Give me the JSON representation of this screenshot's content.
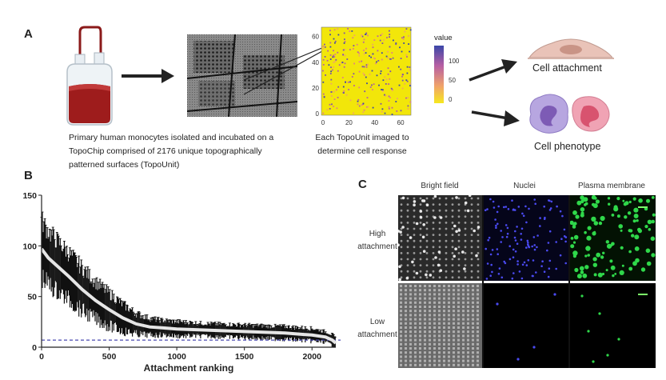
{
  "panelA": {
    "letter": "A",
    "caption_left": [
      "Primary human monocytes isolated and incubated on a",
      "TopoChip comprised of 2176 unique topographically",
      "patterned surfaces (TopoUnit)"
    ],
    "caption_mid": [
      "Each TopoUnit imaged to",
      "determine cell response"
    ],
    "heatmap": {
      "xticks": [
        "0",
        "20",
        "40",
        "60"
      ],
      "yticks": [
        "60",
        "40",
        "20",
        "0"
      ],
      "legend_title": "value",
      "legend_ticks": [
        "100",
        "50",
        "0"
      ]
    },
    "outcomes": [
      "Cell attachment",
      "Cell phenotype"
    ]
  },
  "panelB": {
    "letter": "B",
    "chart_data": {
      "type": "line",
      "xlabel": "Attachment ranking",
      "ylabel": "",
      "xlim": [
        0,
        2176
      ],
      "ylim": [
        0,
        150
      ],
      "xticks": [
        0,
        500,
        1000,
        1500,
        2000
      ],
      "yticks": [
        0,
        50,
        100,
        150
      ],
      "x": [
        0,
        50,
        100,
        200,
        300,
        400,
        500,
        600,
        700,
        800,
        900,
        1000,
        1200,
        1400,
        1600,
        1800,
        2000,
        2100,
        2150,
        2176
      ],
      "series": [
        {
          "name": "",
          "values": [
            97,
            88,
            82,
            70,
            57,
            46,
            37,
            29,
            23,
            20,
            19,
            18,
            17,
            16,
            15,
            14,
            12,
            10,
            7,
            4
          ]
        }
      ],
      "error_band": [
        28,
        26,
        25,
        23,
        21,
        18,
        16,
        13,
        10,
        8,
        7,
        7,
        6,
        6,
        6,
        6,
        6,
        5,
        5,
        4
      ],
      "reference_line": 7,
      "grid": false
    }
  },
  "panelC": {
    "letter": "C",
    "columns": [
      "Bright field",
      "Nuclei",
      "Plasma membrane"
    ],
    "rows": [
      [
        "High",
        "attachment"
      ],
      [
        "Low",
        "attachment"
      ]
    ]
  }
}
